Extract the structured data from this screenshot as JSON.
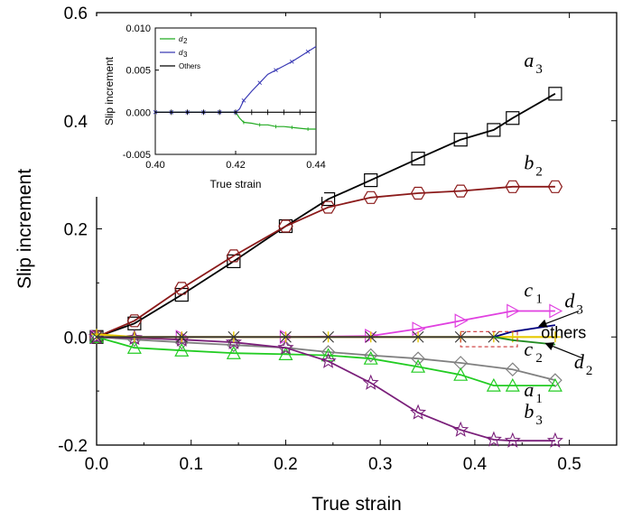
{
  "chart_data": [
    {
      "type": "line",
      "xlabel": "True strain",
      "ylabel": "Slip increment",
      "xlim": [
        0.0,
        0.55
      ],
      "ylim": [
        -0.2,
        0.6
      ],
      "x_ticks": [
        "0.0",
        "0.1",
        "0.2",
        "0.3",
        "0.4",
        "0.5"
      ],
      "y_ticks": [
        "-0.2",
        "0.0",
        "0.2",
        "0.4",
        "0.6"
      ],
      "series": [
        {
          "name": "a3",
          "color": "#000000",
          "marker": "square",
          "x": [
            0.0,
            0.04,
            0.09,
            0.145,
            0.2,
            0.245,
            0.29,
            0.34,
            0.385,
            0.42,
            0.44,
            0.485
          ],
          "y": [
            0.0,
            0.025,
            0.078,
            0.14,
            0.205,
            0.255,
            0.29,
            0.33,
            0.365,
            0.383,
            0.405,
            0.45
          ]
        },
        {
          "name": "b2",
          "color": "#8b1a1a",
          "marker": "hexagon",
          "x": [
            0.0,
            0.04,
            0.09,
            0.145,
            0.2,
            0.245,
            0.29,
            0.34,
            0.385,
            0.44,
            0.485
          ],
          "y": [
            0.0,
            0.03,
            0.09,
            0.15,
            0.205,
            0.24,
            0.258,
            0.266,
            0.27,
            0.278,
            0.278
          ]
        },
        {
          "name": "c1",
          "color": "#e040e0",
          "marker": "triangle-right",
          "x": [
            0.0,
            0.09,
            0.2,
            0.29,
            0.34,
            0.385,
            0.44,
            0.485
          ],
          "y": [
            0.0,
            0.0,
            0.0,
            0.002,
            0.015,
            0.03,
            0.048,
            0.048
          ]
        },
        {
          "name": "c2",
          "color": "#808080",
          "marker": "diamond",
          "x": [
            0.0,
            0.04,
            0.09,
            0.145,
            0.2,
            0.245,
            0.29,
            0.34,
            0.385,
            0.44,
            0.485
          ],
          "y": [
            0.0,
            -0.005,
            -0.01,
            -0.015,
            -0.02,
            -0.028,
            -0.034,
            -0.04,
            -0.048,
            -0.06,
            -0.08
          ]
        },
        {
          "name": "a1",
          "color": "#22cc22",
          "marker": "triangle-up",
          "x": [
            0.0,
            0.04,
            0.09,
            0.145,
            0.2,
            0.245,
            0.29,
            0.34,
            0.385,
            0.42,
            0.44,
            0.485
          ],
          "y": [
            0.0,
            -0.02,
            -0.025,
            -0.03,
            -0.032,
            -0.034,
            -0.04,
            -0.055,
            -0.07,
            -0.09,
            -0.09,
            -0.09
          ]
        },
        {
          "name": "b3",
          "color": "#7a1f7a",
          "marker": "star",
          "x": [
            0.0,
            0.04,
            0.09,
            0.145,
            0.2,
            0.245,
            0.29,
            0.34,
            0.385,
            0.42,
            0.44,
            0.485
          ],
          "y": [
            0.0,
            -0.002,
            -0.005,
            -0.01,
            -0.02,
            -0.045,
            -0.085,
            -0.14,
            -0.172,
            -0.19,
            -0.192,
            -0.192
          ]
        },
        {
          "name": "others",
          "color": "#e6c800",
          "marker": "plus",
          "x": [
            0.0,
            0.04,
            0.09,
            0.145,
            0.2,
            0.245,
            0.29,
            0.34,
            0.385,
            0.42,
            0.44,
            0.485
          ],
          "y": [
            0.005,
            0.0,
            0.0,
            0.0,
            0.0,
            0.0,
            0.0,
            0.0,
            0.0,
            0.0,
            0.0,
            0.0
          ]
        },
        {
          "name": "others-x",
          "color": "#333333",
          "marker": "x",
          "x": [
            0.0,
            0.09,
            0.145,
            0.2,
            0.245,
            0.29,
            0.34,
            0.385,
            0.42
          ],
          "y": [
            0.0,
            0.0,
            0.0,
            0.0,
            0.0,
            0.0,
            0.0,
            0.0,
            0.0
          ]
        },
        {
          "name": "d3",
          "color": "#000080",
          "marker": "none",
          "x": [
            0.42,
            0.44,
            0.485
          ],
          "y": [
            0.0,
            0.01,
            0.022
          ]
        },
        {
          "name": "d2",
          "color": "#228B22",
          "marker": "none",
          "x": [
            0.42,
            0.44,
            0.485
          ],
          "y": [
            0.0,
            -0.006,
            -0.014
          ]
        }
      ],
      "annotations": [
        {
          "letter": "a",
          "sub": "3",
          "x": 0.452,
          "y": 0.5
        },
        {
          "letter": "b",
          "sub": "2",
          "x": 0.452,
          "y": 0.31
        },
        {
          "letter": "c",
          "sub": "1",
          "x": 0.452,
          "y": 0.075
        },
        {
          "letter": "d",
          "sub": "3",
          "x": 0.495,
          "y": 0.055
        },
        {
          "letter": "c",
          "sub": "2",
          "x": 0.452,
          "y": -0.035
        },
        {
          "letter": "d",
          "sub": "2",
          "x": 0.505,
          "y": -0.058
        },
        {
          "letter": "a",
          "sub": "1",
          "x": 0.452,
          "y": -0.11
        },
        {
          "letter": "b",
          "sub": "3",
          "x": 0.452,
          "y": -0.15
        }
      ],
      "others_label": "others"
    },
    {
      "type": "line",
      "xlabel": "True strain",
      "ylabel": "Slip increment",
      "xlim": [
        0.4,
        0.44
      ],
      "ylim": [
        -0.005,
        0.01
      ],
      "x_ticks": [
        "0.40",
        "0.42",
        "0.44"
      ],
      "y_ticks": [
        "-0.005",
        "0.000",
        "0.005",
        "0.010"
      ],
      "legend": [
        "d2",
        "d3",
        "Others"
      ],
      "legend_position": "top-left",
      "series": [
        {
          "name": "d2",
          "color": "#22aa22",
          "x": [
            0.4,
            0.402,
            0.404,
            0.406,
            0.408,
            0.41,
            0.412,
            0.414,
            0.416,
            0.418,
            0.42,
            0.421,
            0.422,
            0.424,
            0.426,
            0.428,
            0.43,
            0.432,
            0.434,
            0.436,
            0.438,
            0.44
          ],
          "y": [
            0,
            0,
            0,
            0,
            0,
            0,
            0,
            0,
            0,
            0,
            0,
            -0.0007,
            -0.0012,
            -0.0013,
            -0.0015,
            -0.0015,
            -0.0017,
            -0.0017,
            -0.0018,
            -0.0019,
            -0.002,
            -0.002
          ]
        },
        {
          "name": "d3",
          "color": "#3b3bb5",
          "x": [
            0.4,
            0.402,
            0.404,
            0.406,
            0.408,
            0.41,
            0.412,
            0.414,
            0.416,
            0.418,
            0.42,
            0.421,
            0.422,
            0.424,
            0.426,
            0.428,
            0.43,
            0.432,
            0.434,
            0.436,
            0.438,
            0.44
          ],
          "y": [
            0,
            0,
            0,
            0,
            0,
            0,
            0,
            0,
            0,
            0,
            0,
            0.0004,
            0.0014,
            0.0025,
            0.0035,
            0.0045,
            0.005,
            0.0055,
            0.006,
            0.0066,
            0.0072,
            0.0078
          ]
        },
        {
          "name": "Others",
          "color": "#000000",
          "x": [
            0.4,
            0.402,
            0.404,
            0.406,
            0.408,
            0.41,
            0.412,
            0.414,
            0.416,
            0.418,
            0.42,
            0.422,
            0.424,
            0.426,
            0.428,
            0.43,
            0.432,
            0.434,
            0.436,
            0.438,
            0.44
          ],
          "y": [
            0,
            0,
            0,
            0,
            0,
            0,
            0,
            0,
            0,
            0,
            0,
            0,
            0,
            0,
            0,
            0,
            0,
            0,
            0,
            0,
            0
          ]
        }
      ]
    }
  ]
}
